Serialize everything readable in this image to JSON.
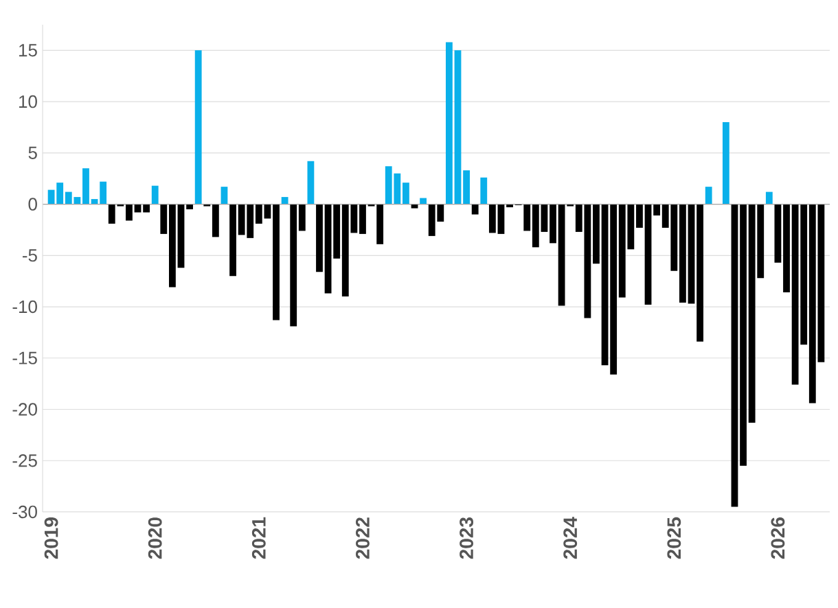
{
  "chart_data": {
    "type": "bar",
    "x": [
      "2019-01",
      "2019-02",
      "2019-03",
      "2019-04",
      "2019-05",
      "2019-06",
      "2019-07",
      "2019-08",
      "2019-09",
      "2019-10",
      "2019-11",
      "2019-12",
      "2020-01",
      "2020-02",
      "2020-03",
      "2020-04",
      "2020-05",
      "2020-06",
      "2020-07",
      "2020-08",
      "2020-09",
      "2020-10",
      "2020-11",
      "2020-12",
      "2021-01",
      "2021-02",
      "2021-03",
      "2021-04",
      "2021-05",
      "2021-06",
      "2021-07",
      "2021-08",
      "2021-09",
      "2021-10",
      "2021-11",
      "2021-12",
      "2022-01",
      "2022-02",
      "2022-03",
      "2022-04",
      "2022-05",
      "2022-06",
      "2022-07",
      "2022-08",
      "2022-09",
      "2022-10",
      "2022-11",
      "2022-12",
      "2023-01",
      "2023-02",
      "2023-03",
      "2023-04",
      "2023-05",
      "2023-06",
      "2023-07",
      "2023-08",
      "2023-09",
      "2023-10",
      "2023-11",
      "2023-12",
      "2024-01",
      "2024-02",
      "2024-03",
      "2024-04",
      "2024-05",
      "2024-06",
      "2024-07",
      "2024-08",
      "2024-09",
      "2024-10",
      "2024-11",
      "2024-12",
      "2025-01",
      "2025-02",
      "2025-03",
      "2025-04",
      "2025-05",
      "2025-06",
      "2025-07",
      "2025-08",
      "2025-09",
      "2025-10",
      "2025-11",
      "2025-12",
      "2026-01",
      "2026-02",
      "2026-03",
      "2026-04",
      "2026-05",
      "2026-06"
    ],
    "values": [
      1.4,
      2.1,
      1.2,
      0.7,
      3.5,
      0.5,
      2.2,
      -1.9,
      -0.2,
      -1.6,
      -0.8,
      -0.8,
      1.8,
      -2.9,
      -8.1,
      -6.2,
      -0.5,
      15.0,
      -0.2,
      -3.2,
      1.7,
      -7.0,
      -3.0,
      -3.3,
      -1.9,
      -1.4,
      -11.3,
      0.7,
      -11.9,
      -2.6,
      4.2,
      -6.6,
      -8.7,
      -5.3,
      -9.0,
      -2.8,
      -2.9,
      -0.2,
      -3.9,
      3.7,
      3.0,
      2.1,
      -0.4,
      0.6,
      -3.1,
      -1.7,
      15.8,
      15.0,
      3.3,
      -1.0,
      2.6,
      -2.8,
      -2.9,
      -0.3,
      -0.1,
      -2.6,
      -4.2,
      -2.7,
      -3.8,
      -9.9,
      -0.2,
      -2.7,
      -11.1,
      -5.8,
      -15.7,
      -16.6,
      -9.1,
      -4.4,
      -2.3,
      -9.8,
      -1.1,
      -2.3,
      -6.5,
      -9.6,
      -9.7,
      -13.4,
      1.7,
      0,
      8.0,
      -29.5,
      -25.5,
      -21.3,
      -7.2,
      1.2,
      -5.7,
      -8.6,
      -17.6,
      -13.7,
      -19.4,
      -15.4
    ],
    "colors": [
      "#0ab0ea",
      "#0ab0ea",
      "#0ab0ea",
      "#0ab0ea",
      "#0ab0ea",
      "#0ab0ea",
      "#0ab0ea",
      "#000000",
      "#000000",
      "#000000",
      "#000000",
      "#000000",
      "#0ab0ea",
      "#000000",
      "#000000",
      "#000000",
      "#000000",
      "#0ab0ea",
      "#000000",
      "#000000",
      "#0ab0ea",
      "#000000",
      "#000000",
      "#000000",
      "#000000",
      "#000000",
      "#000000",
      "#0ab0ea",
      "#000000",
      "#000000",
      "#0ab0ea",
      "#000000",
      "#000000",
      "#000000",
      "#000000",
      "#000000",
      "#000000",
      "#000000",
      "#000000",
      "#0ab0ea",
      "#0ab0ea",
      "#0ab0ea",
      "#000000",
      "#0ab0ea",
      "#000000",
      "#000000",
      "#0ab0ea",
      "#0ab0ea",
      "#0ab0ea",
      "#000000",
      "#0ab0ea",
      "#000000",
      "#000000",
      "#000000",
      "#000000",
      "#000000",
      "#000000",
      "#000000",
      "#000000",
      "#000000",
      "#000000",
      "#000000",
      "#000000",
      "#000000",
      "#000000",
      "#000000",
      "#000000",
      "#000000",
      "#000000",
      "#000000",
      "#000000",
      "#000000",
      "#000000",
      "#000000",
      "#000000",
      "#000000",
      "#0ab0ea",
      "#000000",
      "#0ab0ea",
      "#000000",
      "#000000",
      "#000000",
      "#000000",
      "#0ab0ea",
      "#000000",
      "#000000",
      "#000000",
      "#000000",
      "#000000",
      "#000000"
    ],
    "xlim": [
      "2018-12",
      "2026-07"
    ],
    "xticks": [
      "2019",
      "2020",
      "2021",
      "2022",
      "2023",
      "2024",
      "2025",
      "2026"
    ],
    "ylim": [
      -30,
      17.5
    ],
    "yticks": [
      -30,
      -25,
      -20,
      -15,
      -10,
      -5,
      0,
      5,
      10,
      15
    ],
    "grid": "y"
  }
}
